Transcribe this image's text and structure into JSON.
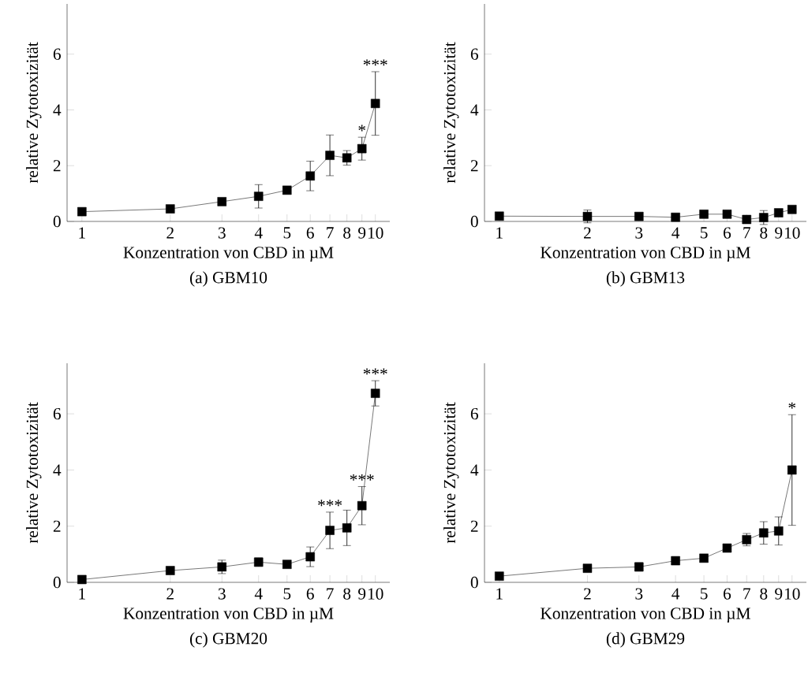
{
  "chart_data": [
    {
      "type": "line",
      "title": "(a) GBM10",
      "xlabel": "Konzentration von CBD in µM",
      "ylabel": "relative Zytotoxizität",
      "log": "x",
      "marker": "square",
      "x": [
        1,
        2,
        3,
        4,
        5,
        6,
        7,
        8,
        9,
        10
      ],
      "xlim": [
        0.89,
        11.2
      ],
      "xticks": [
        1,
        2,
        3,
        4,
        5,
        6,
        7,
        8,
        9,
        10
      ],
      "ylim": [
        0,
        7.8
      ],
      "yticks": [
        0,
        2,
        4,
        6
      ],
      "series": [
        {
          "color": "#000000",
          "values": [
            0.35,
            0.45,
            0.71,
            0.9,
            1.12,
            1.63,
            2.37,
            2.28,
            2.61,
            4.23
          ],
          "errors": [
            0.05,
            0.12,
            0.05,
            0.42,
            0.05,
            0.53,
            0.73,
            0.26,
            0.41,
            1.14
          ]
        }
      ],
      "annotations": [
        {
          "text": "*",
          "x": 9,
          "y": 3.02
        },
        {
          "text": "***",
          "x": 10,
          "y": 5.37
        }
      ]
    },
    {
      "type": "line",
      "title": "(b) GBM13",
      "xlabel": "Konzentration von CBD in µM",
      "ylabel": "relative Zytotoxizität",
      "log": "x",
      "marker": "square",
      "x": [
        1,
        2,
        3,
        4,
        5,
        6,
        7,
        8,
        9,
        10
      ],
      "xlim": [
        0.89,
        11.2
      ],
      "xticks": [
        1,
        2,
        3,
        4,
        5,
        6,
        7,
        8,
        9,
        10
      ],
      "ylim": [
        0,
        7.8
      ],
      "yticks": [
        0,
        2,
        4,
        6
      ],
      "series": [
        {
          "color": "#000000",
          "values": [
            0.19,
            0.18,
            0.18,
            0.15,
            0.26,
            0.26,
            0.07,
            0.14,
            0.31,
            0.43
          ],
          "errors": [
            0.05,
            0.23,
            0.05,
            0.05,
            0.05,
            0.05,
            0.1,
            0.25,
            0.1,
            0.05
          ]
        }
      ]
    },
    {
      "type": "line",
      "title": "(c) GBM20",
      "xlabel": "Konzentration von CBD in µM",
      "ylabel": "relative Zytotoxizität",
      "log": "x",
      "marker": "square",
      "x": [
        1,
        2,
        3,
        4,
        5,
        6,
        7,
        8,
        9,
        10
      ],
      "xlim": [
        0.89,
        11.2
      ],
      "xticks": [
        1,
        2,
        3,
        4,
        5,
        6,
        7,
        8,
        9,
        10
      ],
      "ylim": [
        0,
        7.8
      ],
      "yticks": [
        0,
        2,
        4,
        6
      ],
      "series": [
        {
          "color": "#000000",
          "values": [
            0.1,
            0.42,
            0.55,
            0.72,
            0.64,
            0.91,
            1.85,
            1.94,
            2.73,
            6.73
          ],
          "errors": [
            0.1,
            0.05,
            0.24,
            0.15,
            0.05,
            0.35,
            0.65,
            0.63,
            0.68,
            0.45
          ]
        }
      ],
      "annotations": [
        {
          "text": "***",
          "x": 7,
          "y": 2.5
        },
        {
          "text": "***",
          "x": 9,
          "y": 3.41
        },
        {
          "text": "***",
          "x": 10,
          "y": 7.18
        }
      ]
    },
    {
      "type": "line",
      "title": "(d) GBM29",
      "xlabel": "Konzentration von CBD in µM",
      "ylabel": "relative Zytotoxizität",
      "log": "x",
      "marker": "square",
      "x": [
        1,
        2,
        3,
        4,
        5,
        6,
        7,
        8,
        9,
        10
      ],
      "xlim": [
        0.89,
        11.2
      ],
      "xticks": [
        1,
        2,
        3,
        4,
        5,
        6,
        7,
        8,
        9,
        10
      ],
      "ylim": [
        0,
        7.8
      ],
      "yticks": [
        0,
        2,
        4,
        6
      ],
      "series": [
        {
          "color": "#000000",
          "values": [
            0.22,
            0.5,
            0.55,
            0.77,
            0.86,
            1.22,
            1.52,
            1.76,
            1.83,
            4.0
          ],
          "errors": [
            0.05,
            0.05,
            0.15,
            0.05,
            0.05,
            0.05,
            0.22,
            0.4,
            0.5,
            1.97
          ]
        }
      ],
      "annotations": [
        {
          "text": "*",
          "x": 10,
          "y": 5.97
        }
      ]
    }
  ]
}
